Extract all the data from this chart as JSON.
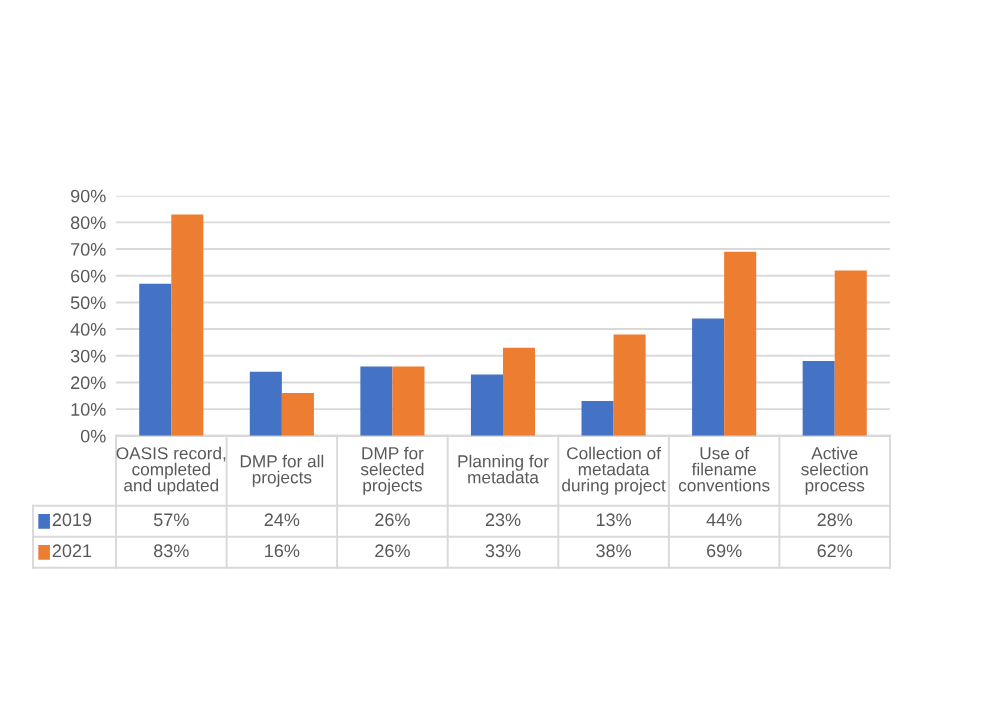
{
  "chart_data": {
    "type": "bar",
    "categories": [
      "OASIS record,\ncompleted\nand updated",
      "DMP for all\nprojects",
      "DMP for\nselected\nprojects",
      "Planning for\nmetadata",
      "Collection of\nmetadata\nduring project",
      "Use of\nfilename\nconventions",
      "Active\nselection\nprocess"
    ],
    "series": [
      {
        "name": "2019",
        "color": "#4472c4",
        "values": [
          57,
          24,
          26,
          23,
          13,
          44,
          28
        ],
        "value_labels": [
          "57%",
          "24%",
          "26%",
          "23%",
          "13%",
          "44%",
          "28%"
        ]
      },
      {
        "name": "2021",
        "color": "#ed7d31",
        "values": [
          83,
          16,
          26,
          33,
          38,
          69,
          62
        ],
        "value_labels": [
          "83%",
          "16%",
          "26%",
          "33%",
          "38%",
          "69%",
          "62%"
        ]
      }
    ],
    "ylim": [
      0,
      90
    ],
    "yticks": [
      {
        "value": 0,
        "label": "0%"
      },
      {
        "value": 10,
        "label": "10%"
      },
      {
        "value": 20,
        "label": "20%"
      },
      {
        "value": 30,
        "label": "30%"
      },
      {
        "value": 40,
        "label": "40%"
      },
      {
        "value": 50,
        "label": "50%"
      },
      {
        "value": 60,
        "label": "60%"
      },
      {
        "value": 70,
        "label": "70%"
      },
      {
        "value": 80,
        "label": "80%"
      },
      {
        "value": 90,
        "label": "90%"
      }
    ],
    "grid": "y",
    "legend": "bottom left"
  }
}
